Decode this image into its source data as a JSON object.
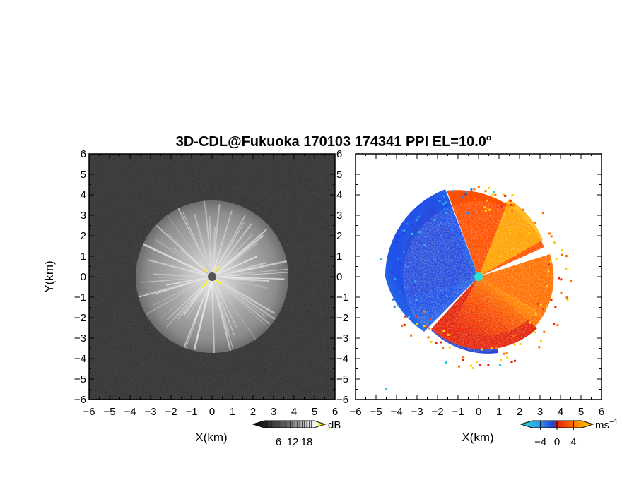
{
  "figure": {
    "title_prefix": "3D-CDL@Fukuoka 170103 174341 PPI EL=10.0",
    "title_degree": "o"
  },
  "chart_data": [
    {
      "type": "heatmap",
      "name": "signal-intensity-ppi",
      "xlabel": "X(km)",
      "ylabel": "Y(km)",
      "xlim": [
        -6,
        6
      ],
      "ylim": [
        -6,
        6
      ],
      "xticks": [
        -6,
        -5,
        -4,
        -3,
        -2,
        -1,
        0,
        1,
        2,
        3,
        4,
        5,
        6
      ],
      "yticks": [
        -6,
        -5,
        -4,
        -3,
        -2,
        -1,
        0,
        1,
        2,
        3,
        4,
        5,
        6
      ],
      "echo_radius_km": 3.7,
      "radar_site": [
        0,
        0
      ],
      "colorbar": {
        "unit": "dB",
        "ticks": [
          6,
          12,
          18
        ],
        "range": [
          0,
          21
        ],
        "colormap": "grayscale",
        "colors": [
          "#000000",
          "#ffffff",
          "#ffee00"
        ]
      }
    },
    {
      "type": "heatmap",
      "name": "doppler-velocity-ppi",
      "xlabel": "X(km)",
      "xlim": [
        -6,
        6
      ],
      "ylim": [
        -6,
        6
      ],
      "xticks": [
        -6,
        -5,
        -4,
        -3,
        -2,
        -1,
        0,
        1,
        2,
        3,
        4,
        5,
        6
      ],
      "yticks": [
        -6,
        -5,
        -4,
        -3,
        -2,
        -1,
        0,
        1,
        2,
        3,
        4,
        5,
        6
      ],
      "echo_radius_km": 3.7,
      "radar_site": [
        0,
        0
      ],
      "colorbar": {
        "unit_base": "ms",
        "unit_exp": "−1",
        "ticks": [
          -4,
          0,
          4
        ],
        "tick_labels": [
          "−4",
          "0",
          "4"
        ],
        "range": [
          -6,
          6
        ],
        "colormap": "diverging",
        "colors": [
          "#1f3fd8",
          "#2aa7e6",
          "#28d8d8",
          "#e8200a",
          "#ff7a00",
          "#ffe000"
        ]
      }
    }
  ]
}
